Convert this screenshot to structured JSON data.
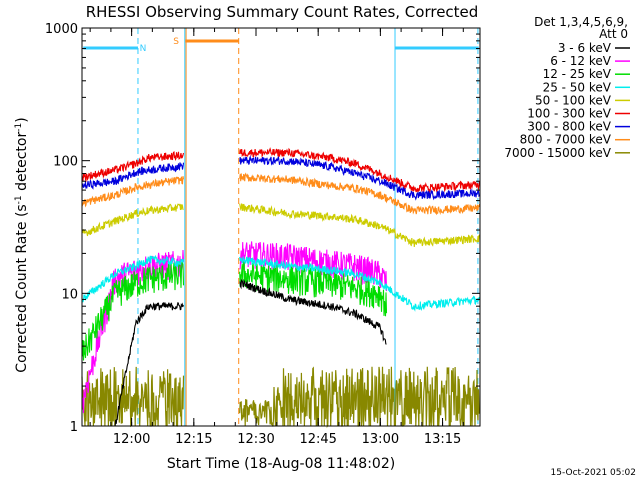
{
  "chart_data": {
    "type": "line",
    "title": "RHESSI Observing Summary Count Rates, Corrected",
    "xlabel": "Start Time (18-Aug-08 11:48:02)",
    "ylabel_main": "Corrected Count Rate (s",
    "ylabel_sup1": "-1",
    "ylabel_mid": " detector",
    "ylabel_sup2": "-1",
    "ylabel_end": ")",
    "y_scale": "log",
    "ylim": [
      1,
      1000
    ],
    "x_unit": "minutes since 11:48:02",
    "xlim": [
      0,
      96
    ],
    "x_ticks": [
      {
        "t": 11.97,
        "label": "12:00"
      },
      {
        "t": 26.97,
        "label": "12:15"
      },
      {
        "t": 41.97,
        "label": "12:30"
      },
      {
        "t": 56.97,
        "label": "12:45"
      },
      {
        "t": 71.97,
        "label": "13:00"
      },
      {
        "t": 86.97,
        "label": "13:15"
      }
    ],
    "y_ticks": [
      {
        "v": 1,
        "label": "1"
      },
      {
        "v": 10,
        "label": "10"
      },
      {
        "v": 100,
        "label": "100"
      },
      {
        "v": 1000,
        "label": "1000"
      }
    ],
    "detector_header": [
      "Det 1,3,4,5,6,9,",
      "Att 0"
    ],
    "footer_date": "15-Oct-2021 05:02",
    "markers": {
      "night_label": "N",
      "saa_label": "S",
      "night_color": "#33ccff",
      "saa_color": "#ff8c1a"
    },
    "gaps": [
      [
        24.5,
        38.0
      ]
    ],
    "series": [
      {
        "name": "3 - 6 keV",
        "color": "#000000",
        "values": [
          [
            8,
            1
          ],
          [
            13,
            6
          ],
          [
            16,
            8
          ],
          [
            24.5,
            8
          ],
          [
            38,
            12
          ],
          [
            50,
            9
          ],
          [
            60,
            8
          ],
          [
            66,
            7
          ],
          [
            72,
            5.5
          ],
          [
            73.5,
            4
          ]
        ]
      },
      {
        "name": "6 - 12 keV",
        "color": "#ff00ff",
        "values": [
          [
            0,
            1.5
          ],
          [
            8,
            13
          ],
          [
            13,
            15
          ],
          [
            16,
            16
          ],
          [
            24.5,
            17
          ],
          [
            38,
            20
          ],
          [
            50,
            19
          ],
          [
            60,
            17
          ],
          [
            66,
            16
          ],
          [
            72,
            14
          ],
          [
            73.5,
            12
          ]
        ]
      },
      {
        "name": "12 - 25 keV",
        "color": "#00dd00",
        "values": [
          [
            0,
            3.5
          ],
          [
            8,
            10
          ],
          [
            13,
            12
          ],
          [
            16,
            13
          ],
          [
            24.5,
            14
          ],
          [
            38,
            14
          ],
          [
            50,
            13
          ],
          [
            60,
            12
          ],
          [
            66,
            11
          ],
          [
            72,
            10
          ],
          [
            73.5,
            8
          ]
        ]
      },
      {
        "name": "25 - 50 keV",
        "color": "#00eeee",
        "values": [
          [
            0,
            9
          ],
          [
            8,
            14
          ],
          [
            13,
            16
          ],
          [
            16,
            18
          ],
          [
            24.5,
            17
          ],
          [
            38,
            18
          ],
          [
            50,
            16
          ],
          [
            60,
            15
          ],
          [
            66,
            14
          ],
          [
            72,
            12
          ],
          [
            80,
            8
          ],
          [
            96,
            9
          ]
        ]
      },
      {
        "name": "50 - 100 keV",
        "color": "#cccc00",
        "values": [
          [
            0,
            28
          ],
          [
            8,
            35
          ],
          [
            13,
            40
          ],
          [
            16,
            42
          ],
          [
            24.5,
            45
          ],
          [
            38,
            45
          ],
          [
            50,
            40
          ],
          [
            60,
            38
          ],
          [
            66,
            36
          ],
          [
            72,
            32
          ],
          [
            80,
            24
          ],
          [
            96,
            26
          ]
        ]
      },
      {
        "name": "100 - 300 keV",
        "color": "#ee0000",
        "values": [
          [
            0,
            75
          ],
          [
            8,
            85
          ],
          [
            13,
            95
          ],
          [
            16,
            105
          ],
          [
            24.5,
            110
          ],
          [
            38,
            115
          ],
          [
            50,
            115
          ],
          [
            60,
            105
          ],
          [
            66,
            95
          ],
          [
            72,
            80
          ],
          [
            80,
            62
          ],
          [
            96,
            66
          ]
        ]
      },
      {
        "name": "300 - 800 keV",
        "color": "#0000dd",
        "values": [
          [
            0,
            65
          ],
          [
            8,
            70
          ],
          [
            13,
            82
          ],
          [
            16,
            85
          ],
          [
            24.5,
            92
          ],
          [
            38,
            100
          ],
          [
            50,
            100
          ],
          [
            60,
            90
          ],
          [
            66,
            80
          ],
          [
            72,
            70
          ],
          [
            80,
            55
          ],
          [
            96,
            57
          ]
        ]
      },
      {
        "name": "800 - 7000 keV",
        "color": "#ff8c1a",
        "values": [
          [
            0,
            48
          ],
          [
            8,
            55
          ],
          [
            13,
            63
          ],
          [
            16,
            66
          ],
          [
            24.5,
            72
          ],
          [
            38,
            75
          ],
          [
            50,
            72
          ],
          [
            60,
            65
          ],
          [
            66,
            62
          ],
          [
            72,
            55
          ],
          [
            80,
            42
          ],
          [
            96,
            44
          ]
        ]
      },
      {
        "name": "7000 - 15000 keV",
        "color": "#888800",
        "values": [
          [
            0,
            1.5
          ],
          [
            8,
            2
          ],
          [
            13,
            1.5
          ],
          [
            16,
            1.8
          ],
          [
            24.5,
            1.5
          ],
          [
            38,
            1.5
          ],
          [
            50,
            2.5
          ],
          [
            60,
            2.5
          ],
          [
            66,
            2
          ],
          [
            72,
            1.8
          ],
          [
            80,
            1.5
          ],
          [
            96,
            1.5
          ]
        ]
      }
    ]
  }
}
